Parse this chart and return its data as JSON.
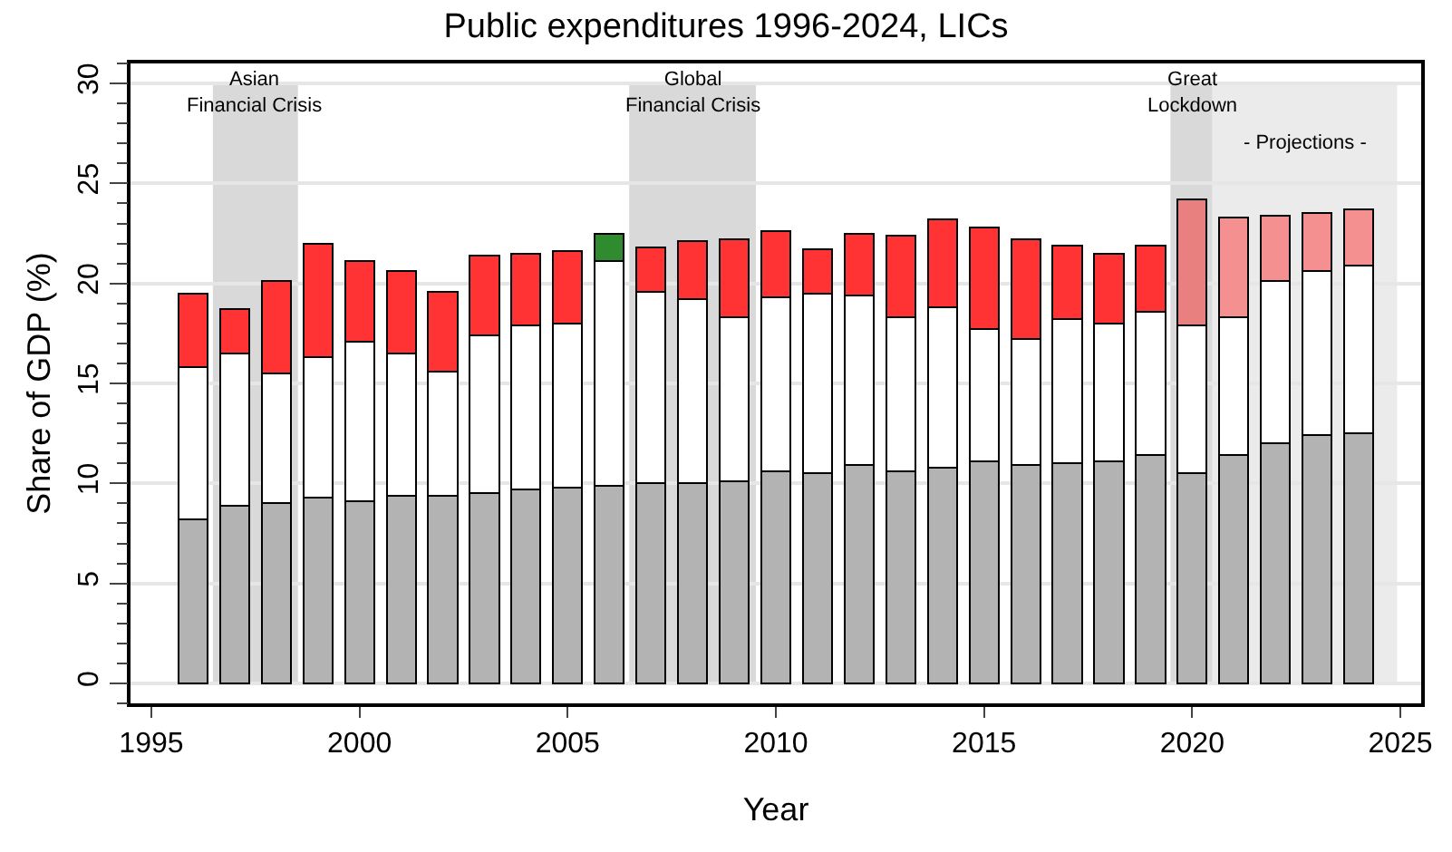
{
  "chart_data": {
    "type": "bar",
    "title": "Public expenditures 1996-2024, LICs",
    "xlabel": "Year",
    "ylabel": "Share of GDP (%)",
    "x": [
      1996,
      1997,
      1998,
      1999,
      2000,
      2001,
      2002,
      2003,
      2004,
      2005,
      2006,
      2007,
      2008,
      2009,
      2010,
      2011,
      2012,
      2013,
      2014,
      2015,
      2016,
      2017,
      2018,
      2019,
      2020,
      2021,
      2022,
      2023,
      2024
    ],
    "stacked": true,
    "series": [
      {
        "color": "#b3b3b3",
        "values": [
          8.2,
          8.9,
          9.0,
          9.3,
          9.1,
          9.4,
          9.4,
          9.5,
          9.7,
          9.8,
          9.9,
          10.0,
          10.0,
          10.1,
          10.6,
          10.5,
          10.9,
          10.6,
          10.8,
          11.1,
          10.9,
          11.0,
          11.1,
          11.4,
          10.5,
          11.4,
          12.0,
          12.4,
          12.5
        ]
      },
      {
        "color": "#ffffff",
        "values": [
          7.6,
          7.6,
          6.5,
          7.0,
          8.0,
          7.1,
          6.2,
          7.9,
          8.2,
          8.2,
          11.2,
          9.6,
          9.2,
          8.2,
          8.7,
          9.0,
          8.5,
          7.7,
          8.0,
          6.6,
          6.3,
          7.2,
          6.9,
          7.2,
          7.4,
          6.9,
          8.1,
          8.2,
          8.4
        ]
      },
      {
        "colors": [
          "#ff3333",
          "#ff3333",
          "#ff3333",
          "#ff3333",
          "#ff3333",
          "#ff3333",
          "#ff3333",
          "#ff3333",
          "#ff3333",
          "#ff3333",
          "#2e8b2e",
          "#ff3333",
          "#ff3333",
          "#ff3333",
          "#ff3333",
          "#ff3333",
          "#ff3333",
          "#ff3333",
          "#ff3333",
          "#ff3333",
          "#ff3333",
          "#ff3333",
          "#ff3333",
          "#ff3333",
          "#e88080",
          "#f49090",
          "#f49090",
          "#f49090",
          "#f49090"
        ],
        "values": [
          3.7,
          2.2,
          4.6,
          5.7,
          4.0,
          4.1,
          4.0,
          4.0,
          3.6,
          3.6,
          1.4,
          2.2,
          2.9,
          3.9,
          3.3,
          2.2,
          3.1,
          4.1,
          4.4,
          5.1,
          5.0,
          3.7,
          3.5,
          3.3,
          6.3,
          5.0,
          3.3,
          2.9,
          2.8
        ]
      }
    ],
    "xlim": [
      1994.5,
      2025.5
    ],
    "xticks": [
      1995,
      2000,
      2005,
      2010,
      2015,
      2020,
      2025
    ],
    "ylim": [
      -1,
      31
    ],
    "yticks": [
      0,
      5,
      10,
      15,
      20,
      25,
      30
    ],
    "grid": "y",
    "bands": [
      {
        "axis": "x",
        "from": 1996.5,
        "to": 1998.5,
        "label": "Asian\nFinancial Crisis",
        "color": "#d9d9d9"
      },
      {
        "axis": "x",
        "from": 2006.5,
        "to": 2009.5,
        "label": "Global\nFinancial Crisis",
        "color": "#d9d9d9"
      },
      {
        "axis": "x",
        "from": 2019.5,
        "to": 2020.5,
        "label": "Great\nLockdown",
        "color": "#d9d9d9"
      },
      {
        "axis": "x",
        "from": 2020.5,
        "to": 2024.9,
        "label": "- Projections -",
        "color": "#ebebeb"
      }
    ]
  }
}
